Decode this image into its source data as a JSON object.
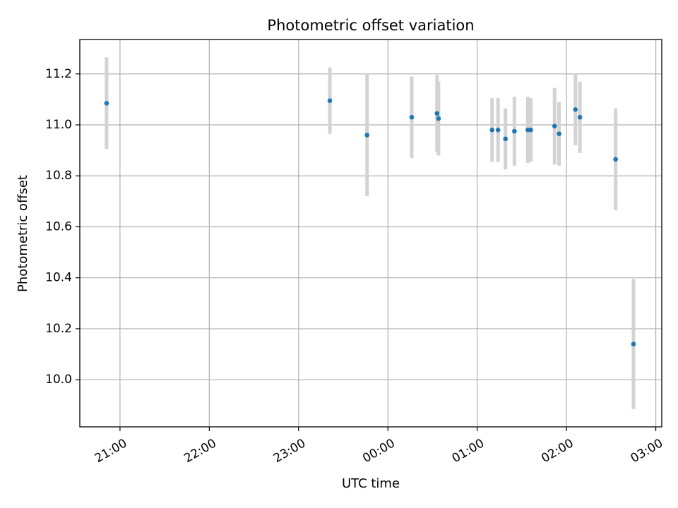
{
  "chart_data": {
    "type": "scatter",
    "title": "Photometric offset variation",
    "xlabel": "UTC time",
    "ylabel": "Photometric offset",
    "x_tick_labels": [
      "21:00",
      "22:00",
      "23:00",
      "00:00",
      "01:00",
      "02:00",
      "03:00"
    ],
    "x_tick_values": [
      "20:59",
      "21:59",
      "22:59",
      "23:59",
      "00:59",
      "01:59",
      "02:59"
    ],
    "y_tick_labels": [
      "10.0",
      "10.2",
      "10.4",
      "10.6",
      "10.8",
      "11.0",
      "11.2"
    ],
    "y_tick_values": [
      10.0,
      10.2,
      10.4,
      10.6,
      10.8,
      11.0,
      11.2
    ],
    "xlim": [
      "20:32",
      "03:03"
    ],
    "ylim": [
      9.815,
      11.335
    ],
    "grid": true,
    "point_color": "#1f77b4",
    "errorbar_color": "#d3d3d3",
    "points": [
      {
        "x": "20:50",
        "y": 11.085,
        "err": 0.18
      },
      {
        "x": "23:20",
        "y": 11.095,
        "err": 0.13
      },
      {
        "x": "23:45",
        "y": 10.96,
        "err": 0.24
      },
      {
        "x": "00:15",
        "y": 11.03,
        "err": 0.16
      },
      {
        "x": "00:32",
        "y": 11.045,
        "err": 0.15
      },
      {
        "x": "00:33",
        "y": 11.025,
        "err": 0.145
      },
      {
        "x": "01:09",
        "y": 10.98,
        "err": 0.125
      },
      {
        "x": "01:13",
        "y": 10.98,
        "err": 0.125
      },
      {
        "x": "01:18",
        "y": 10.945,
        "err": 0.12
      },
      {
        "x": "01:24",
        "y": 10.975,
        "err": 0.135
      },
      {
        "x": "01:33",
        "y": 10.98,
        "err": 0.13
      },
      {
        "x": "01:35",
        "y": 10.98,
        "err": 0.125
      },
      {
        "x": "01:51",
        "y": 10.995,
        "err": 0.15
      },
      {
        "x": "01:54",
        "y": 10.965,
        "err": 0.125
      },
      {
        "x": "02:05",
        "y": 11.06,
        "err": 0.14
      },
      {
        "x": "02:08",
        "y": 11.03,
        "err": 0.14
      },
      {
        "x": "02:32",
        "y": 10.865,
        "err": 0.2
      },
      {
        "x": "02:44",
        "y": 10.14,
        "err": 0.255
      }
    ]
  }
}
